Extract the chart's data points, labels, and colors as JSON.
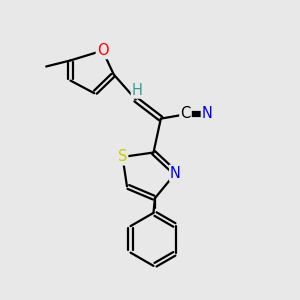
{
  "bg_color": "#e8e8e8",
  "atom_colors": {
    "C": "#000000",
    "H": "#3a9a9a",
    "O": "#ff0000",
    "N": "#0000ee",
    "S": "#cccc00"
  },
  "bond_color": "#000000",
  "bond_width": 1.6,
  "font_size": 10.5
}
